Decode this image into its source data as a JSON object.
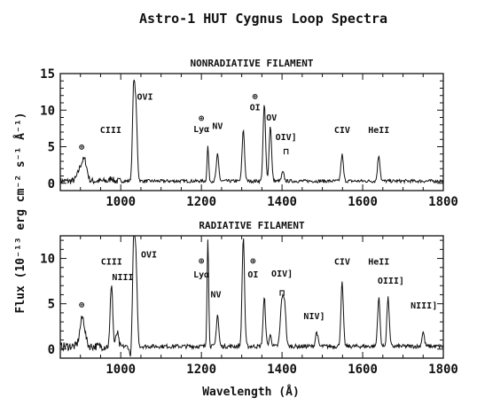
{
  "figure": {
    "title": "Astro-1 HUT Cygnus Loop Spectra",
    "xlabel": "Wavelength (Å)",
    "ylabel": "Flux (10⁻¹³ erg cm⁻² s⁻¹ Å⁻¹)"
  },
  "chart_data": [
    {
      "type": "line",
      "title": "NONRADIATIVE FILAMENT",
      "xlim": [
        850,
        1800
      ],
      "ylim": [
        -1,
        15
      ],
      "xticks": [
        1000,
        1200,
        1400,
        1600,
        1800
      ],
      "yticks": [
        0,
        5,
        10,
        15
      ],
      "baseline": 0.3,
      "lines": [
        {
          "center": 903,
          "height": 2.2,
          "width": 8
        },
        {
          "center": 912,
          "height": 1.6,
          "width": 5
        },
        {
          "center": 977,
          "height": 0.5,
          "width": 3
        },
        {
          "center": 1032,
          "height": 12.5,
          "width": 3
        },
        {
          "center": 1038,
          "height": 9.0,
          "width": 3
        },
        {
          "center": 1216,
          "height": 4.8,
          "width": 2
        },
        {
          "center": 1240,
          "height": 3.6,
          "width": 3
        },
        {
          "center": 1304,
          "height": 7.0,
          "width": 3
        },
        {
          "center": 1356,
          "height": 10.5,
          "width": 3
        },
        {
          "center": 1371,
          "height": 7.5,
          "width": 3
        },
        {
          "center": 1402,
          "height": 1.2,
          "width": 3
        },
        {
          "center": 1549,
          "height": 3.6,
          "width": 3
        },
        {
          "center": 1640,
          "height": 3.5,
          "width": 3
        }
      ],
      "annotations": [
        {
          "x": 903,
          "y": 4.6,
          "text": "⊕"
        },
        {
          "x": 975,
          "y": 6.9,
          "text": "CIII"
        },
        {
          "x": 1060,
          "y": 11.4,
          "text": "OVI"
        },
        {
          "x": 1200,
          "y": 8.5,
          "text": "⊕"
        },
        {
          "x": 1200,
          "y": 7.0,
          "text": "Lyα"
        },
        {
          "x": 1240,
          "y": 7.4,
          "text": "NV"
        },
        {
          "x": 1333,
          "y": 11.5,
          "text": "⊕"
        },
        {
          "x": 1333,
          "y": 10.0,
          "text": "OI"
        },
        {
          "x": 1374,
          "y": 8.6,
          "text": "OV"
        },
        {
          "x": 1410,
          "y": 5.9,
          "text": "OIV]"
        },
        {
          "x": 1410,
          "y": 4.0,
          "text": "⊓"
        },
        {
          "x": 1549,
          "y": 6.9,
          "text": "CIV"
        },
        {
          "x": 1640,
          "y": 6.9,
          "text": "HeII"
        }
      ]
    },
    {
      "type": "line",
      "title": "RADIATIVE FILAMENT",
      "xlim": [
        850,
        1800
      ],
      "ylim": [
        -1,
        12.5
      ],
      "xticks": [
        1000,
        1200,
        1400,
        1600,
        1800
      ],
      "yticks": [
        0,
        5,
        10
      ],
      "baseline": 0.3,
      "lines": [
        {
          "center": 905,
          "height": 3.2,
          "width": 6
        },
        {
          "center": 977,
          "height": 7.0,
          "width": 3
        },
        {
          "center": 991,
          "height": 1.5,
          "width": 3
        },
        {
          "center": 1025,
          "height": -1.3,
          "width": 3
        },
        {
          "center": 1032,
          "height": 11.3,
          "width": 3
        },
        {
          "center": 1038,
          "height": 8.6,
          "width": 3
        },
        {
          "center": 1216,
          "height": 12.0,
          "width": 2
        },
        {
          "center": 1240,
          "height": 3.5,
          "width": 3
        },
        {
          "center": 1304,
          "height": 12.0,
          "width": 3
        },
        {
          "center": 1356,
          "height": 5.3,
          "width": 3
        },
        {
          "center": 1371,
          "height": 1.2,
          "width": 3
        },
        {
          "center": 1400,
          "height": 5.2,
          "width": 4
        },
        {
          "center": 1407,
          "height": 3.8,
          "width": 3
        },
        {
          "center": 1486,
          "height": 1.6,
          "width": 3
        },
        {
          "center": 1549,
          "height": 7.0,
          "width": 3
        },
        {
          "center": 1640,
          "height": 5.3,
          "width": 3
        },
        {
          "center": 1663,
          "height": 5.3,
          "width": 3
        },
        {
          "center": 1750,
          "height": 1.6,
          "width": 3
        }
      ],
      "annotations": [
        {
          "x": 903,
          "y": 4.6,
          "text": "⊕"
        },
        {
          "x": 977,
          "y": 9.3,
          "text": "CIII"
        },
        {
          "x": 1005,
          "y": 7.6,
          "text": "NIII"
        },
        {
          "x": 1070,
          "y": 10.1,
          "text": "OVI"
        },
        {
          "x": 1200,
          "y": 9.4,
          "text": "⊕"
        },
        {
          "x": 1200,
          "y": 7.9,
          "text": "Lyα"
        },
        {
          "x": 1236,
          "y": 5.7,
          "text": "NV"
        },
        {
          "x": 1328,
          "y": 9.4,
          "text": "⊕"
        },
        {
          "x": 1328,
          "y": 7.9,
          "text": "OI"
        },
        {
          "x": 1400,
          "y": 8.0,
          "text": "OIV]"
        },
        {
          "x": 1400,
          "y": 5.9,
          "text": "⊓"
        },
        {
          "x": 1480,
          "y": 3.3,
          "text": "NIV]"
        },
        {
          "x": 1549,
          "y": 9.3,
          "text": "CIV"
        },
        {
          "x": 1640,
          "y": 9.3,
          "text": "HeII"
        },
        {
          "x": 1670,
          "y": 7.2,
          "text": "OIII]"
        },
        {
          "x": 1752,
          "y": 4.5,
          "text": "NIII]"
        }
      ]
    }
  ]
}
